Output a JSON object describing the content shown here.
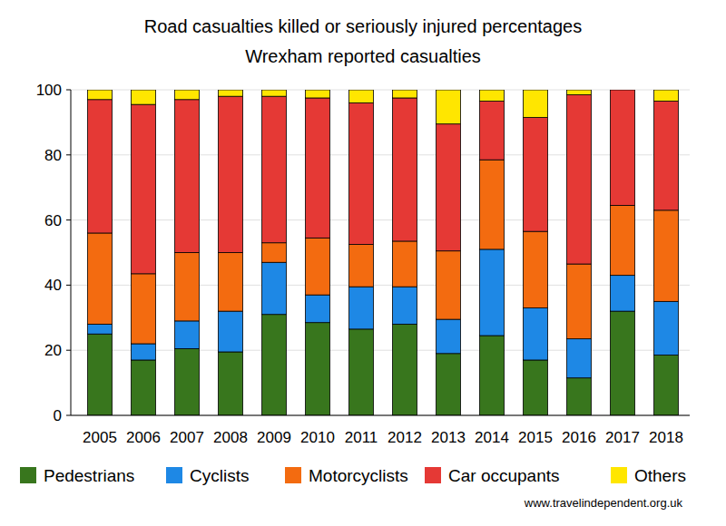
{
  "chart_data": {
    "type": "bar",
    "stacked": true,
    "title": "Road casualties killed or seriously injured percentages",
    "subtitle": "Wrexham reported casualties",
    "source": "www.travelindependent.org.uk",
    "categories": [
      "2005",
      "2006",
      "2007",
      "2008",
      "2009",
      "2010",
      "2011",
      "2012",
      "2013",
      "2014",
      "2015",
      "2016",
      "2017",
      "2018"
    ],
    "series": [
      {
        "name": "Pedestrians",
        "color": "#38761d",
        "values": [
          25,
          17,
          20.5,
          19.5,
          31,
          28.5,
          26.5,
          28,
          19,
          24.5,
          17,
          11.5,
          32,
          18.5
        ]
      },
      {
        "name": "Cyclists",
        "color": "#1e88e5",
        "values": [
          3,
          5,
          8.5,
          12.5,
          16,
          8.5,
          13,
          11.5,
          10.5,
          26.5,
          16,
          12,
          11,
          16.5
        ]
      },
      {
        "name": "Motorcyclists",
        "color": "#f36b10",
        "values": [
          28,
          21.5,
          21,
          18,
          6,
          17.5,
          13,
          14,
          21,
          27.5,
          23.5,
          23,
          21.5,
          28
        ]
      },
      {
        "name": "Car occupants",
        "color": "#e53935",
        "values": [
          41,
          52,
          47,
          48,
          45,
          43,
          43.5,
          44,
          39,
          18,
          35,
          52,
          35.5,
          33.5
        ]
      },
      {
        "name": "Others",
        "color": "#ffe600",
        "values": [
          3,
          4.5,
          3,
          2,
          2,
          2.5,
          4,
          2.5,
          10.5,
          3.5,
          8.5,
          1.5,
          0,
          3.5
        ]
      }
    ],
    "ylim": [
      0,
      100
    ],
    "yticks": [
      0,
      20,
      40,
      60,
      80,
      100
    ],
    "grid": true,
    "legend": "bottom"
  }
}
